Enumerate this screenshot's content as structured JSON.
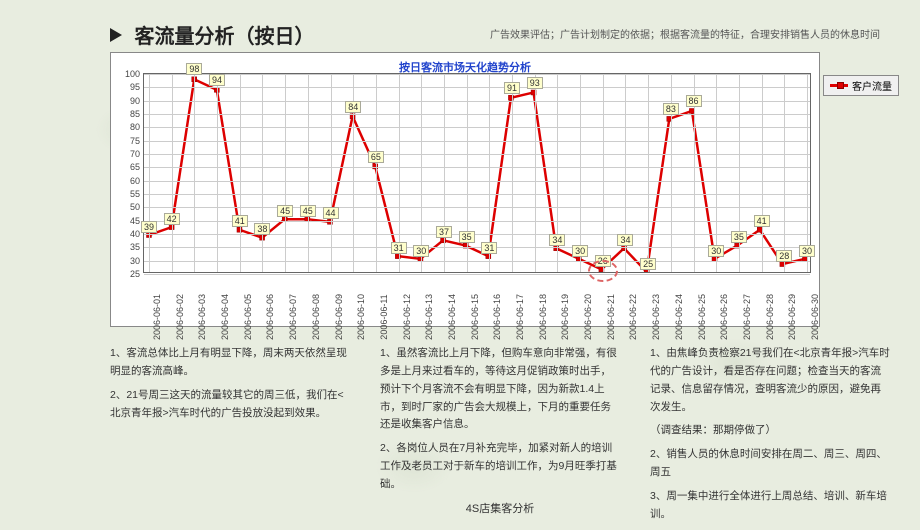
{
  "header": {
    "triangle_color": "#222222",
    "title": "客流量分析（按日）",
    "subtitle": "广告效果评估；广告计划制定的依据；根据客流量的特征，合理安排销售人员的休息时间"
  },
  "chart": {
    "type": "line",
    "title": "按日客流市场天化趋势分析",
    "title_color": "#2244cc",
    "background_color": "#ffffff",
    "grid_color": "#cccccc",
    "border_color": "#666666",
    "line_color": "#dd0000",
    "line_width": 2.5,
    "marker": "square",
    "marker_size": 5,
    "marker_fill": "#dd0000",
    "label_box_bg": "#ffffcc",
    "label_box_border": "#aaaa99",
    "label_fontsize": 9,
    "ylim": [
      25,
      100
    ],
    "ytick_step": 5,
    "yticks": [
      25,
      30,
      35,
      40,
      45,
      50,
      55,
      60,
      65,
      70,
      75,
      80,
      85,
      90,
      95,
      100
    ],
    "categories": [
      "2006-06-01",
      "2006-06-02",
      "2006-06-03",
      "2006-06-04",
      "2006-06-05",
      "2006-06-06",
      "2006-06-07",
      "2006-06-08",
      "2006-06-09",
      "2006-06-10",
      "2006-06-11",
      "2006-06-12",
      "2006-06-13",
      "2006-06-14",
      "2006-06-15",
      "2006-06-16",
      "2006-06-17",
      "2006-06-18",
      "2006-06-19",
      "2006-06-20",
      "2006-06-21",
      "2006-06-22",
      "2006-06-23",
      "2006-06-24",
      "2006-06-25",
      "2006-06-26",
      "2006-06-27",
      "2006-06-28",
      "2006-06-29",
      "2006-06-30"
    ],
    "values": [
      39,
      42,
      98,
      94,
      41,
      38,
      45,
      45,
      44,
      84,
      65,
      31,
      30,
      37,
      35,
      31,
      91,
      93,
      34,
      30,
      26,
      34,
      25,
      83,
      86,
      30,
      35,
      41,
      28,
      30
    ],
    "highlight_ring_index": 20,
    "highlight_ring_color": "#dd6666",
    "legend": {
      "label": "客户流量",
      "swatch_color": "#dd0000",
      "bg": "#f0f0f0"
    }
  },
  "columns": {
    "c1": {
      "p1": "1、客流总体比上月有明显下降，周末两天依然呈现明显的客流高峰。",
      "p2": "2、21号周三这天的流量较其它的周三低，我们在<北京青年报>汽车时代的广告投放没起到效果。"
    },
    "c2": {
      "p1": "1、虽然客流比上月下降，但购车意向非常强，有很多是上月来过看车的，等待这月促销政策时出手，预计下个月客流不会有明显下降，因为新款1.4上市，到时厂家的广告会大规模上，下月的重要任务还是收集客户信息。",
      "p2": "2、各岗位人员在7月补充完毕，加紧对新人的培训工作及老员工对于新车的培训工作，为9月旺季打基础。"
    },
    "c3": {
      "p1": "1、由焦峰负责检察21号我们在<北京青年报>汽车时代的广告设计，看是否存在问题；检查当天的客流记录、信息留存情况，查明客流少的原因，避免再次发生。",
      "p2": "（调查结果：那期停做了）",
      "p3": "2、销售人员的休息时间安排在周二、周三、周四、周五",
      "p4": "3、周一集中进行全体进行上周总结、培训、新车培训。"
    }
  },
  "footer": "4S店集客分析"
}
